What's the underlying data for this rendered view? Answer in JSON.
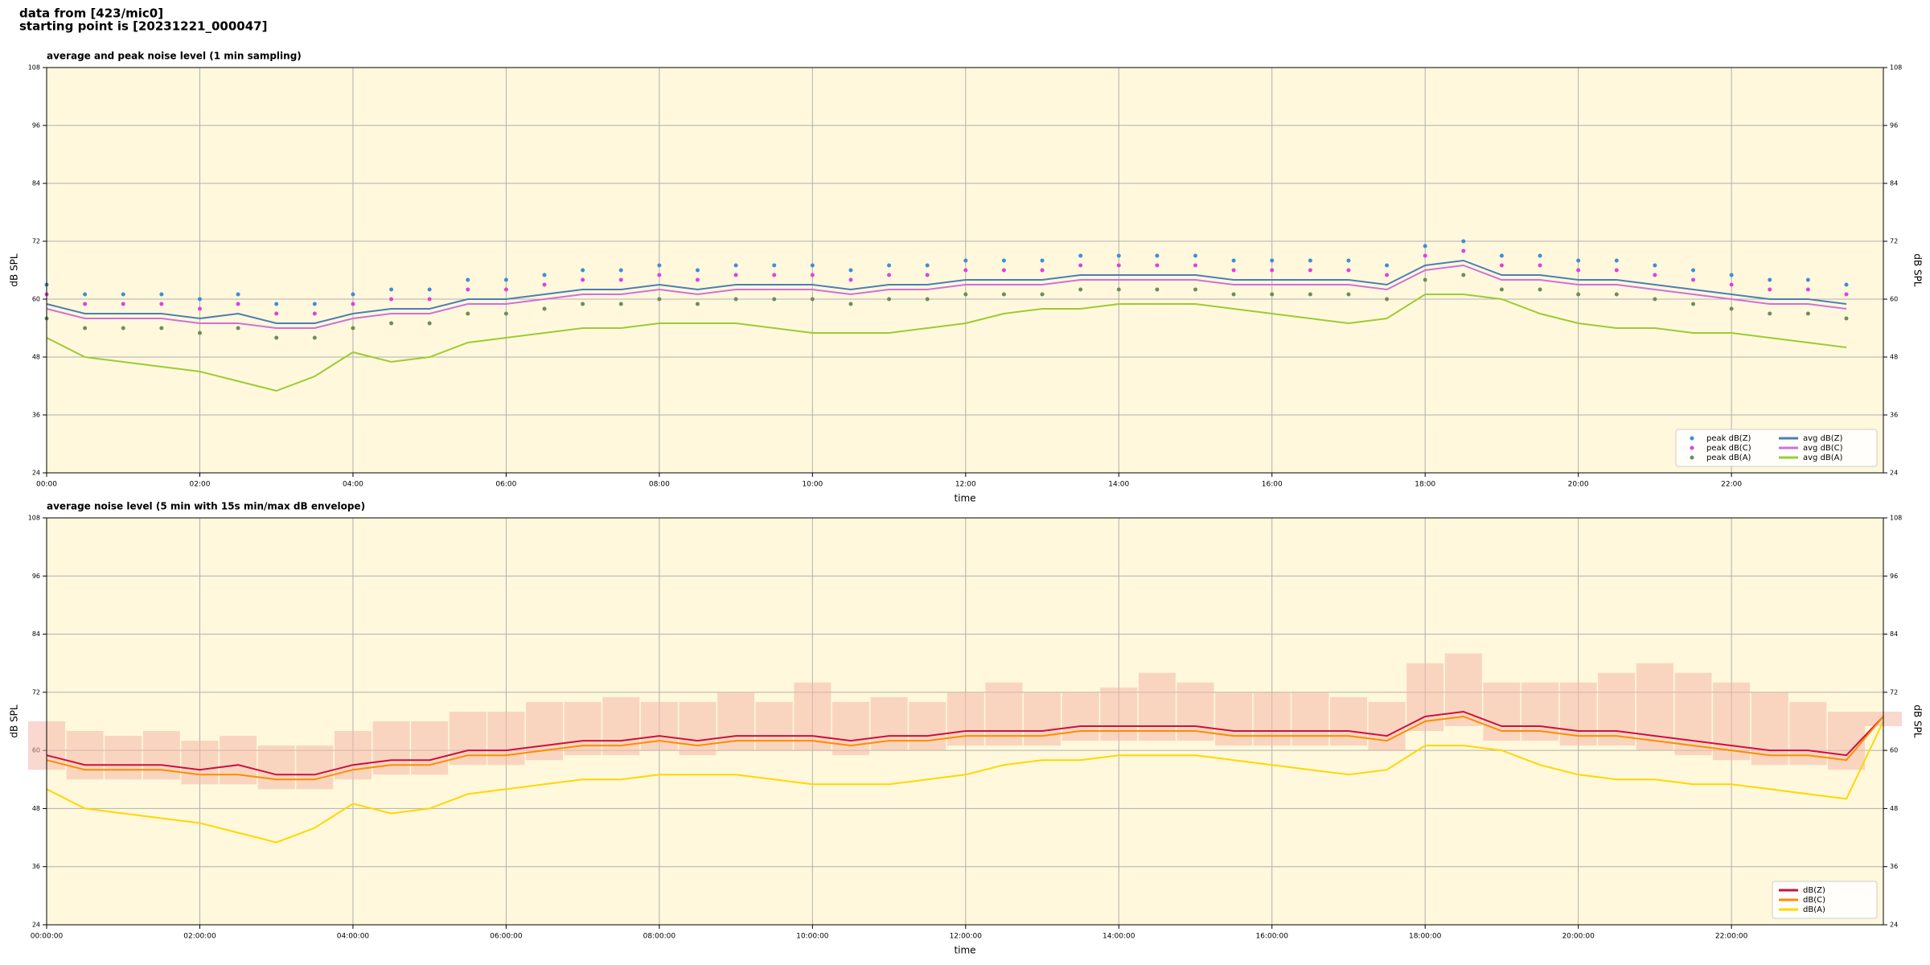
{
  "header": [
    "data from [423/mic0]",
    "starting point is [20231221_000047]"
  ],
  "chart_data": [
    {
      "type": "line",
      "title": "average and peak noise level (1 min sampling)",
      "xlabel": "time",
      "ylabel": "dB SPL",
      "ylabel_right": "dB SPL",
      "xlim": [
        "00:00",
        "23:59"
      ],
      "xticks": [
        "00:00",
        "02:00",
        "04:00",
        "06:00",
        "08:00",
        "10:00",
        "12:00",
        "14:00",
        "16:00",
        "18:00",
        "20:00",
        "22:00"
      ],
      "ylim": [
        24,
        108
      ],
      "yticks": [
        24,
        36,
        48,
        60,
        72,
        84,
        96,
        108
      ],
      "grid": true,
      "legend": "lower right",
      "legend_columns": 2,
      "x": [
        "00:00",
        "00:30",
        "01:00",
        "01:30",
        "02:00",
        "02:30",
        "03:00",
        "03:30",
        "04:00",
        "04:30",
        "05:00",
        "05:30",
        "06:00",
        "06:30",
        "07:00",
        "07:30",
        "08:00",
        "08:30",
        "09:00",
        "09:30",
        "10:00",
        "10:30",
        "11:00",
        "11:30",
        "12:00",
        "12:30",
        "13:00",
        "13:30",
        "14:00",
        "14:30",
        "15:00",
        "15:30",
        "16:00",
        "16:30",
        "17:00",
        "17:30",
        "18:00",
        "18:30",
        "19:00",
        "19:30",
        "20:00",
        "20:30",
        "21:00",
        "21:30",
        "22:00",
        "22:30",
        "23:00",
        "23:30"
      ],
      "series": [
        {
          "name": "peak dB(Z)",
          "style": "dots",
          "color": "#3b8fd6",
          "values": [
            63,
            61,
            61,
            61,
            60,
            61,
            59,
            59,
            61,
            62,
            62,
            64,
            64,
            65,
            66,
            66,
            67,
            66,
            67,
            67,
            67,
            66,
            67,
            67,
            68,
            68,
            68,
            69,
            69,
            69,
            69,
            68,
            68,
            68,
            68,
            67,
            71,
            72,
            69,
            69,
            68,
            68,
            67,
            66,
            65,
            64,
            64,
            63
          ]
        },
        {
          "name": "peak dB(C)",
          "style": "dots",
          "color": "#e040e0",
          "values": [
            61,
            59,
            59,
            59,
            58,
            59,
            57,
            57,
            59,
            60,
            60,
            62,
            62,
            63,
            64,
            64,
            65,
            64,
            65,
            65,
            65,
            64,
            65,
            65,
            66,
            66,
            66,
            67,
            67,
            67,
            67,
            66,
            66,
            66,
            66,
            65,
            69,
            70,
            67,
            67,
            66,
            66,
            65,
            64,
            63,
            62,
            62,
            61
          ]
        },
        {
          "name": "peak dB(A)",
          "style": "dots",
          "color": "#6b8e5a",
          "values": [
            56,
            54,
            54,
            54,
            53,
            54,
            52,
            52,
            54,
            55,
            55,
            57,
            57,
            58,
            59,
            59,
            60,
            59,
            60,
            60,
            60,
            59,
            60,
            60,
            61,
            61,
            61,
            62,
            62,
            62,
            62,
            61,
            61,
            61,
            61,
            60,
            64,
            65,
            62,
            62,
            61,
            61,
            60,
            59,
            58,
            57,
            57,
            56
          ]
        },
        {
          "name": "avg dB(Z)",
          "style": "line",
          "color": "#4a7fb5",
          "values": [
            59,
            57,
            57,
            57,
            56,
            57,
            55,
            55,
            57,
            58,
            58,
            60,
            60,
            61,
            62,
            62,
            63,
            62,
            63,
            63,
            63,
            62,
            63,
            63,
            64,
            64,
            64,
            65,
            65,
            65,
            65,
            64,
            64,
            64,
            64,
            63,
            67,
            68,
            65,
            65,
            64,
            64,
            63,
            62,
            61,
            60,
            60,
            59
          ]
        },
        {
          "name": "avg dB(C)",
          "style": "line",
          "color": "#d070d8",
          "values": [
            58,
            56,
            56,
            56,
            55,
            55,
            54,
            54,
            56,
            57,
            57,
            59,
            59,
            60,
            61,
            61,
            62,
            61,
            62,
            62,
            62,
            61,
            62,
            62,
            63,
            63,
            63,
            64,
            64,
            64,
            64,
            63,
            63,
            63,
            63,
            62,
            66,
            67,
            64,
            64,
            63,
            63,
            62,
            61,
            60,
            59,
            59,
            58
          ]
        },
        {
          "name": "avg dB(A)",
          "style": "line",
          "color": "#9acd32",
          "values": [
            52,
            48,
            47,
            46,
            45,
            43,
            41,
            44,
            49,
            47,
            48,
            51,
            52,
            53,
            54,
            54,
            55,
            55,
            55,
            54,
            53,
            53,
            53,
            54,
            55,
            57,
            58,
            58,
            59,
            59,
            59,
            58,
            57,
            56,
            55,
            56,
            61,
            61,
            60,
            57,
            55,
            54,
            54,
            53,
            53,
            52,
            51,
            50
          ]
        }
      ]
    },
    {
      "type": "line",
      "title": "average noise level (5 min with 15s min/max dB envelope)",
      "xlabel": "time",
      "ylabel": "dB SPL",
      "ylabel_right": "dB SPL",
      "xlim": [
        "00:00:00",
        "23:59:00"
      ],
      "xticks": [
        "00:00:00",
        "02:00:00",
        "04:00:00",
        "06:00:00",
        "08:00:00",
        "10:00:00",
        "12:00:00",
        "14:00:00",
        "16:00:00",
        "18:00:00",
        "20:00:00",
        "22:00:00"
      ],
      "ylim": [
        24,
        108
      ],
      "yticks": [
        24,
        36,
        48,
        60,
        72,
        84,
        96,
        108
      ],
      "grid": true,
      "legend": "lower right",
      "legend_columns": 1,
      "x": [
        "00:00:00",
        "00:30:00",
        "01:00:00",
        "01:30:00",
        "02:00:00",
        "02:30:00",
        "03:00:00",
        "03:30:00",
        "04:00:00",
        "04:30:00",
        "05:00:00",
        "05:30:00",
        "06:00:00",
        "06:30:00",
        "07:00:00",
        "07:30:00",
        "08:00:00",
        "08:30:00",
        "09:00:00",
        "09:30:00",
        "10:00:00",
        "10:30:00",
        "11:00:00",
        "11:30:00",
        "12:00:00",
        "12:30:00",
        "13:00:00",
        "13:30:00",
        "14:00:00",
        "14:30:00",
        "15:00:00",
        "15:30:00",
        "16:00:00",
        "16:30:00",
        "17:00:00",
        "17:30:00",
        "18:00:00",
        "18:30:00",
        "19:00:00",
        "19:30:00",
        "20:00:00",
        "20:30:00",
        "21:00:00",
        "21:30:00",
        "22:00:00",
        "22:30:00",
        "23:00:00",
        "23:30:00",
        "23:59:00"
      ],
      "envelope": {
        "color": "#f4b8a8",
        "max": [
          66,
          64,
          63,
          64,
          62,
          63,
          61,
          61,
          64,
          66,
          66,
          68,
          68,
          70,
          70,
          71,
          70,
          70,
          72,
          70,
          74,
          70,
          71,
          70,
          72,
          74,
          72,
          72,
          73,
          76,
          74,
          72,
          72,
          72,
          71,
          70,
          78,
          80,
          74,
          74,
          74,
          76,
          78,
          76,
          74,
          72,
          70,
          68,
          68
        ],
        "min": [
          56,
          54,
          54,
          54,
          53,
          53,
          52,
          52,
          54,
          55,
          55,
          57,
          57,
          58,
          59,
          59,
          60,
          59,
          60,
          60,
          60,
          59,
          60,
          60,
          61,
          61,
          61,
          62,
          62,
          62,
          62,
          61,
          61,
          61,
          61,
          60,
          64,
          65,
          62,
          62,
          61,
          61,
          60,
          59,
          58,
          57,
          57,
          56,
          65
        ]
      },
      "series": [
        {
          "name": "dB(Z)",
          "style": "line",
          "color": "#cc1040",
          "values": [
            59,
            57,
            57,
            57,
            56,
            57,
            55,
            55,
            57,
            58,
            58,
            60,
            60,
            61,
            62,
            62,
            63,
            62,
            63,
            63,
            63,
            62,
            63,
            63,
            64,
            64,
            64,
            65,
            65,
            65,
            65,
            64,
            64,
            64,
            64,
            63,
            67,
            68,
            65,
            65,
            64,
            64,
            63,
            62,
            61,
            60,
            60,
            59,
            67
          ]
        },
        {
          "name": "dB(C)",
          "style": "line",
          "color": "#ff8c00",
          "values": [
            58,
            56,
            56,
            56,
            55,
            55,
            54,
            54,
            56,
            57,
            57,
            59,
            59,
            60,
            61,
            61,
            62,
            61,
            62,
            62,
            62,
            61,
            62,
            62,
            63,
            63,
            63,
            64,
            64,
            64,
            64,
            63,
            63,
            63,
            63,
            62,
            66,
            67,
            64,
            64,
            63,
            63,
            62,
            61,
            60,
            59,
            59,
            58,
            67
          ]
        },
        {
          "name": "dB(A)",
          "style": "line",
          "color": "#ffd700",
          "values": [
            52,
            48,
            47,
            46,
            45,
            43,
            41,
            44,
            49,
            47,
            48,
            51,
            52,
            53,
            54,
            54,
            55,
            55,
            55,
            54,
            53,
            53,
            53,
            54,
            55,
            57,
            58,
            58,
            59,
            59,
            59,
            58,
            57,
            56,
            55,
            56,
            61,
            61,
            60,
            57,
            55,
            54,
            54,
            53,
            53,
            52,
            51,
            50,
            66
          ]
        }
      ]
    }
  ]
}
